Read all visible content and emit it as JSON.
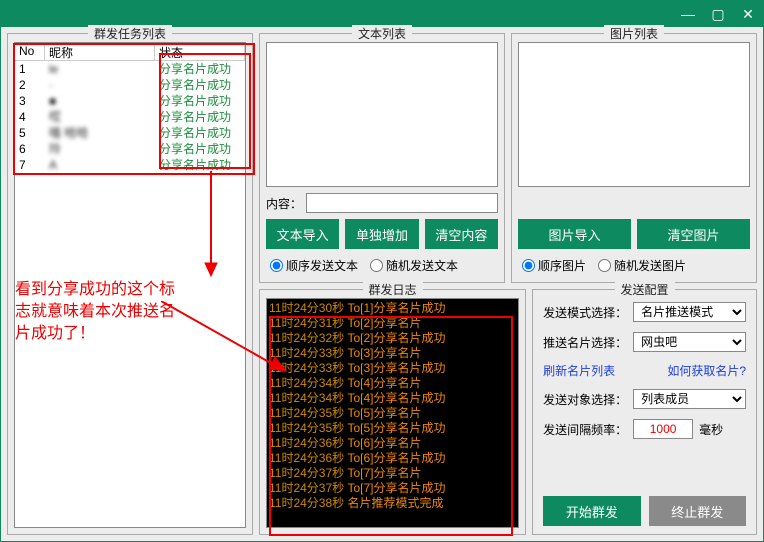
{
  "titlebar": {
    "min": "—",
    "max": "▢",
    "close": "✕"
  },
  "panels": {
    "task": "群发任务列表",
    "text": "文本列表",
    "image": "图片列表",
    "log": "群发日志",
    "config": "发送配置"
  },
  "task_header": {
    "no": "No",
    "name": "昵称",
    "status": "状态"
  },
  "tasks": [
    {
      "no": "1",
      "name": "le",
      "status": "分享名片成功"
    },
    {
      "no": "2",
      "name": "·",
      "status": "分享名片成功"
    },
    {
      "no": "3",
      "name": "■",
      "status": "分享名片成功"
    },
    {
      "no": "4",
      "name": "哎",
      "status": "分享名片成功"
    },
    {
      "no": "5",
      "name": "嘻  哈哈",
      "status": "分享名片成功"
    },
    {
      "no": "6",
      "name": "玲",
      "status": "分享名片成功"
    },
    {
      "no": "7",
      "name": "A",
      "status": "分享名片成功"
    }
  ],
  "annotation": "看到分享成功的这个标志就意味着本次推送名片成功了！",
  "text_panel": {
    "content_label": "内容：",
    "btn_import": "文本导入",
    "btn_add": "单独增加",
    "btn_clear": "清空内容",
    "radio_seq": "顺序发送文本",
    "radio_rand": "随机发送文本"
  },
  "image_panel": {
    "btn_import": "图片导入",
    "btn_clear": "清空图片",
    "radio_seq": "顺序图片",
    "radio_rand": "随机发送图片"
  },
  "logs": [
    {
      "t": "11时24分30秒",
      "m": "To[1]分享名片成功"
    },
    {
      "t": "11时24分31秒",
      "m": "To[2]分享名片"
    },
    {
      "t": "11时24分32秒",
      "m": "To[2]分享名片成功"
    },
    {
      "t": "11时24分33秒",
      "m": "To[3]分享名片"
    },
    {
      "t": "11时24分33秒",
      "m": "To[3]分享名片成功"
    },
    {
      "t": "11时24分34秒",
      "m": "To[4]分享名片"
    },
    {
      "t": "11时24分34秒",
      "m": "To[4]分享名片成功"
    },
    {
      "t": "11时24分35秒",
      "m": "To[5]分享名片"
    },
    {
      "t": "11时24分35秒",
      "m": "To[5]分享名片成功"
    },
    {
      "t": "11时24分36秒",
      "m": "To[6]分享名片"
    },
    {
      "t": "11时24分36秒",
      "m": "To[6]分享名片成功"
    },
    {
      "t": "11时24分37秒",
      "m": "To[7]分享名片"
    },
    {
      "t": "11时24分37秒",
      "m": "To[7]分享名片成功"
    },
    {
      "t": "11时24分38秒",
      "m": "名片推荐模式完成"
    }
  ],
  "config": {
    "mode_label": "发送模式选择：",
    "mode_value": "名片推送模式",
    "card_label": "推送名片选择：",
    "card_value": "网虫吧",
    "link_refresh": "刷新名片列表",
    "link_help": "如何获取名片?",
    "target_label": "发送对象选择：",
    "target_value": "列表成员",
    "interval_label": "发送间隔频率：",
    "interval_value": "1000",
    "interval_unit": "毫秒",
    "btn_start": "开始群发",
    "btn_stop": "终止群发"
  },
  "colors": {
    "brand": "#0d8a5f",
    "red": "#e00000"
  }
}
